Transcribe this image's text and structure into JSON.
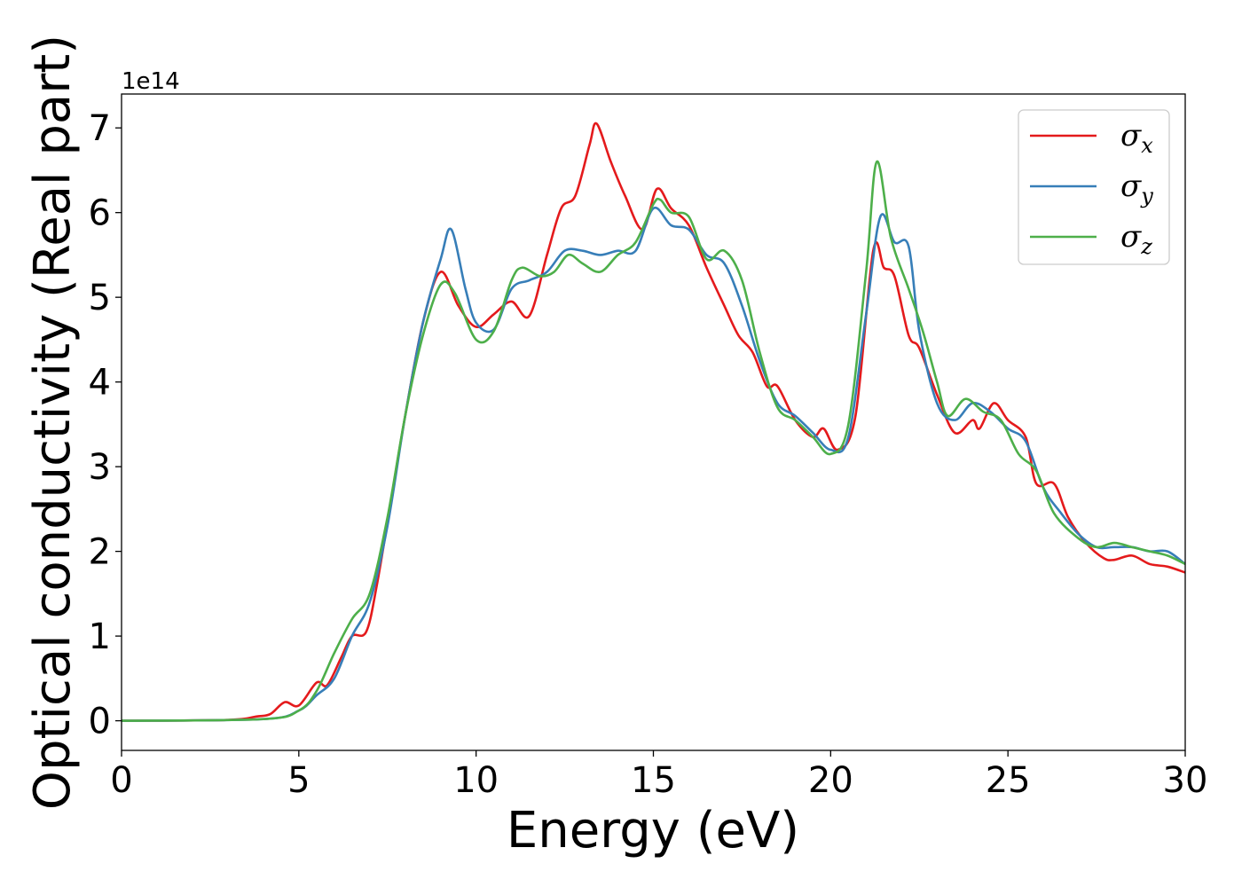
{
  "chart_data": {
    "type": "line",
    "xlabel": "Energy (eV)",
    "ylabel": "Optical conductivity (Real part)",
    "y_offset_label": "1e14",
    "xlim": [
      0,
      30
    ],
    "ylim": [
      -0.35,
      7.4
    ],
    "x_ticks": [
      0,
      5,
      10,
      15,
      20,
      25,
      30
    ],
    "y_ticks": [
      0,
      1,
      2,
      3,
      4,
      5,
      6,
      7
    ],
    "grid": false,
    "legend_position": "top-right",
    "series": [
      {
        "name": "σx",
        "legend_symbol": "σ",
        "legend_subscript": "x",
        "color": "#e41a1c",
        "points": [
          [
            0,
            0
          ],
          [
            3,
            0.01
          ],
          [
            3.8,
            0.05
          ],
          [
            4.2,
            0.08
          ],
          [
            4.6,
            0.22
          ],
          [
            5.0,
            0.18
          ],
          [
            5.5,
            0.45
          ],
          [
            5.8,
            0.42
          ],
          [
            6.2,
            0.75
          ],
          [
            6.5,
            1.0
          ],
          [
            6.9,
            1.05
          ],
          [
            7.2,
            1.6
          ],
          [
            7.6,
            2.6
          ],
          [
            8.0,
            3.6
          ],
          [
            8.5,
            4.7
          ],
          [
            9.0,
            5.3
          ],
          [
            9.5,
            4.9
          ],
          [
            10.0,
            4.65
          ],
          [
            10.5,
            4.8
          ],
          [
            11.0,
            4.95
          ],
          [
            11.5,
            4.78
          ],
          [
            12.0,
            5.5
          ],
          [
            12.4,
            6.05
          ],
          [
            12.8,
            6.2
          ],
          [
            13.2,
            6.8
          ],
          [
            13.4,
            7.05
          ],
          [
            13.8,
            6.6
          ],
          [
            14.2,
            6.2
          ],
          [
            14.7,
            5.8
          ],
          [
            15.1,
            6.28
          ],
          [
            15.5,
            6.05
          ],
          [
            16.0,
            5.85
          ],
          [
            16.5,
            5.35
          ],
          [
            17.0,
            4.9
          ],
          [
            17.4,
            4.55
          ],
          [
            17.8,
            4.35
          ],
          [
            18.2,
            3.95
          ],
          [
            18.5,
            3.95
          ],
          [
            19.0,
            3.55
          ],
          [
            19.5,
            3.35
          ],
          [
            19.8,
            3.45
          ],
          [
            20.2,
            3.2
          ],
          [
            20.7,
            3.6
          ],
          [
            21.2,
            5.55
          ],
          [
            21.5,
            5.35
          ],
          [
            21.8,
            5.25
          ],
          [
            22.2,
            4.55
          ],
          [
            22.5,
            4.4
          ],
          [
            23.0,
            3.85
          ],
          [
            23.5,
            3.4
          ],
          [
            24.0,
            3.55
          ],
          [
            24.2,
            3.45
          ],
          [
            24.6,
            3.75
          ],
          [
            25.0,
            3.55
          ],
          [
            25.5,
            3.35
          ],
          [
            25.8,
            2.8
          ],
          [
            26.3,
            2.8
          ],
          [
            26.7,
            2.4
          ],
          [
            27.2,
            2.1
          ],
          [
            27.7,
            1.92
          ],
          [
            28.0,
            1.9
          ],
          [
            28.5,
            1.95
          ],
          [
            29.0,
            1.85
          ],
          [
            29.5,
            1.82
          ],
          [
            30.0,
            1.75
          ]
        ]
      },
      {
        "name": "σy",
        "legend_symbol": "σ",
        "legend_subscript": "y",
        "color": "#377eb8",
        "points": [
          [
            0,
            0
          ],
          [
            4,
            0.02
          ],
          [
            5.0,
            0.12
          ],
          [
            5.5,
            0.3
          ],
          [
            6.0,
            0.5
          ],
          [
            6.5,
            1.0
          ],
          [
            7.0,
            1.4
          ],
          [
            7.5,
            2.3
          ],
          [
            8.0,
            3.6
          ],
          [
            8.5,
            4.7
          ],
          [
            9.0,
            5.45
          ],
          [
            9.3,
            5.8
          ],
          [
            9.7,
            5.1
          ],
          [
            10.0,
            4.7
          ],
          [
            10.5,
            4.62
          ],
          [
            11.0,
            5.1
          ],
          [
            11.5,
            5.2
          ],
          [
            12.0,
            5.3
          ],
          [
            12.5,
            5.55
          ],
          [
            13.0,
            5.55
          ],
          [
            13.5,
            5.5
          ],
          [
            14.0,
            5.55
          ],
          [
            14.5,
            5.55
          ],
          [
            15.0,
            6.05
          ],
          [
            15.5,
            5.85
          ],
          [
            16.0,
            5.8
          ],
          [
            16.5,
            5.5
          ],
          [
            17.0,
            5.4
          ],
          [
            17.5,
            4.9
          ],
          [
            18.0,
            4.25
          ],
          [
            18.5,
            3.75
          ],
          [
            19.0,
            3.6
          ],
          [
            19.5,
            3.4
          ],
          [
            20.0,
            3.2
          ],
          [
            20.5,
            3.35
          ],
          [
            21.0,
            4.8
          ],
          [
            21.4,
            5.95
          ],
          [
            21.8,
            5.65
          ],
          [
            22.2,
            5.6
          ],
          [
            22.5,
            4.6
          ],
          [
            23.0,
            3.75
          ],
          [
            23.5,
            3.55
          ],
          [
            24.0,
            3.75
          ],
          [
            24.5,
            3.65
          ],
          [
            25.0,
            3.45
          ],
          [
            25.5,
            3.3
          ],
          [
            26.0,
            2.75
          ],
          [
            26.5,
            2.45
          ],
          [
            27.0,
            2.2
          ],
          [
            27.5,
            2.05
          ],
          [
            28.0,
            2.05
          ],
          [
            28.5,
            2.05
          ],
          [
            29.0,
            2.0
          ],
          [
            29.5,
            2.0
          ],
          [
            30.0,
            1.85
          ]
        ]
      },
      {
        "name": "σz",
        "legend_symbol": "σ",
        "legend_subscript": "z",
        "color": "#4daf4a",
        "points": [
          [
            0,
            0
          ],
          [
            4,
            0.02
          ],
          [
            5.0,
            0.12
          ],
          [
            5.5,
            0.35
          ],
          [
            6.0,
            0.8
          ],
          [
            6.5,
            1.2
          ],
          [
            7.0,
            1.5
          ],
          [
            7.5,
            2.4
          ],
          [
            8.0,
            3.6
          ],
          [
            8.5,
            4.55
          ],
          [
            9.0,
            5.15
          ],
          [
            9.4,
            5.05
          ],
          [
            10.0,
            4.5
          ],
          [
            10.5,
            4.6
          ],
          [
            11.0,
            5.2
          ],
          [
            11.3,
            5.35
          ],
          [
            11.8,
            5.25
          ],
          [
            12.2,
            5.3
          ],
          [
            12.6,
            5.5
          ],
          [
            13.0,
            5.4
          ],
          [
            13.5,
            5.3
          ],
          [
            14.0,
            5.5
          ],
          [
            14.5,
            5.65
          ],
          [
            15.0,
            6.1
          ],
          [
            15.2,
            6.15
          ],
          [
            15.5,
            6.0
          ],
          [
            16.0,
            5.95
          ],
          [
            16.5,
            5.45
          ],
          [
            17.0,
            5.55
          ],
          [
            17.5,
            5.2
          ],
          [
            18.0,
            4.35
          ],
          [
            18.5,
            3.7
          ],
          [
            19.0,
            3.55
          ],
          [
            19.5,
            3.35
          ],
          [
            20.0,
            3.15
          ],
          [
            20.5,
            3.5
          ],
          [
            21.0,
            5.3
          ],
          [
            21.3,
            6.6
          ],
          [
            21.7,
            5.7
          ],
          [
            22.2,
            5.1
          ],
          [
            22.6,
            4.6
          ],
          [
            23.0,
            4.0
          ],
          [
            23.3,
            3.6
          ],
          [
            23.8,
            3.8
          ],
          [
            24.3,
            3.65
          ],
          [
            24.8,
            3.55
          ],
          [
            25.3,
            3.15
          ],
          [
            25.8,
            2.95
          ],
          [
            26.3,
            2.45
          ],
          [
            27.0,
            2.15
          ],
          [
            27.5,
            2.05
          ],
          [
            28.0,
            2.1
          ],
          [
            28.5,
            2.05
          ],
          [
            29.0,
            2.0
          ],
          [
            29.5,
            1.95
          ],
          [
            30.0,
            1.85
          ]
        ]
      }
    ]
  }
}
